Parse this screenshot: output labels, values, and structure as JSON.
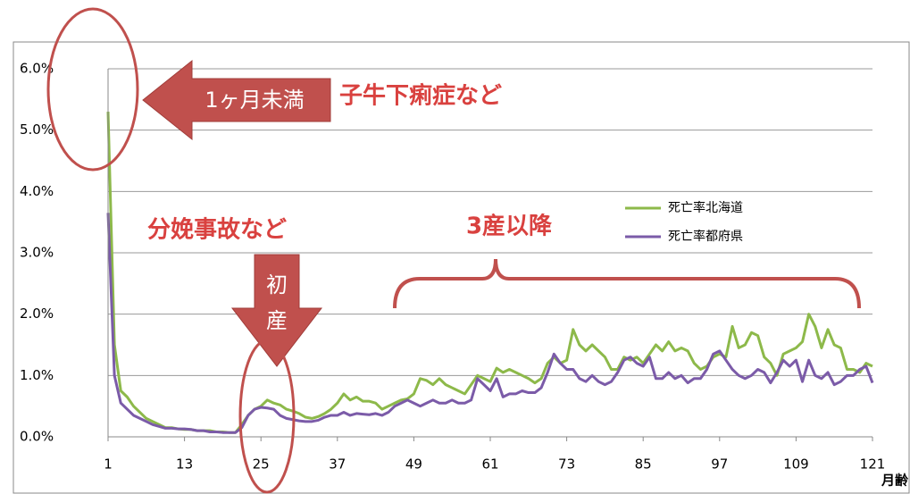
{
  "chart_data": {
    "type": "line",
    "xlabel": "月齢",
    "xlim": [
      1,
      121
    ],
    "xticks": [
      1,
      13,
      25,
      37,
      49,
      61,
      73,
      85,
      97,
      109,
      121
    ],
    "ylim": [
      0,
      6
    ],
    "yticks": [
      {
        "value": 0,
        "label": "0.0%"
      },
      {
        "value": 1,
        "label": "1.0%"
      },
      {
        "value": 2,
        "label": "2.0%"
      },
      {
        "value": 3,
        "label": "3.0%"
      },
      {
        "value": 4,
        "label": "4.0%"
      },
      {
        "value": 5,
        "label": "5.0%"
      },
      {
        "value": 6,
        "label": "6.0%"
      }
    ],
    "grid": true,
    "x": [
      1,
      2,
      3,
      4,
      5,
      6,
      7,
      8,
      9,
      10,
      11,
      12,
      13,
      14,
      15,
      16,
      17,
      18,
      19,
      20,
      21,
      22,
      23,
      24,
      25,
      26,
      27,
      28,
      29,
      30,
      31,
      32,
      33,
      34,
      35,
      36,
      37,
      38,
      39,
      40,
      41,
      42,
      43,
      44,
      45,
      46,
      47,
      48,
      49,
      50,
      51,
      52,
      53,
      54,
      55,
      56,
      57,
      58,
      59,
      60,
      61,
      62,
      63,
      64,
      65,
      66,
      67,
      68,
      69,
      70,
      71,
      72,
      73,
      74,
      75,
      76,
      77,
      78,
      79,
      80,
      81,
      82,
      83,
      84,
      85,
      86,
      87,
      88,
      89,
      90,
      91,
      92,
      93,
      94,
      95,
      96,
      97,
      98,
      99,
      100,
      101,
      102,
      103,
      104,
      105,
      106,
      107,
      108,
      109,
      110,
      111,
      112,
      113,
      114,
      115,
      116,
      117,
      118,
      119,
      120,
      121
    ],
    "series": [
      {
        "name": "死亡率北海道",
        "color": "#8db94a",
        "values": [
          5.3,
          1.5,
          0.75,
          0.65,
          0.5,
          0.4,
          0.3,
          0.25,
          0.2,
          0.15,
          0.15,
          0.13,
          0.12,
          0.12,
          0.1,
          0.1,
          0.1,
          0.08,
          0.08,
          0.07,
          0.07,
          0.2,
          0.35,
          0.45,
          0.5,
          0.6,
          0.55,
          0.52,
          0.45,
          0.42,
          0.38,
          0.32,
          0.3,
          0.33,
          0.38,
          0.45,
          0.55,
          0.7,
          0.6,
          0.65,
          0.58,
          0.58,
          0.55,
          0.45,
          0.5,
          0.55,
          0.6,
          0.62,
          0.7,
          0.95,
          0.92,
          0.85,
          0.95,
          0.85,
          0.8,
          0.75,
          0.7,
          0.85,
          1.0,
          0.95,
          0.9,
          1.12,
          1.05,
          1.1,
          1.05,
          1.0,
          0.95,
          0.88,
          0.95,
          1.2,
          1.3,
          1.2,
          1.25,
          1.75,
          1.5,
          1.4,
          1.5,
          1.4,
          1.3,
          1.1,
          1.1,
          1.3,
          1.25,
          1.3,
          1.2,
          1.35,
          1.5,
          1.4,
          1.55,
          1.4,
          1.45,
          1.4,
          1.2,
          1.1,
          1.15,
          1.3,
          1.35,
          1.3,
          1.8,
          1.45,
          1.5,
          1.7,
          1.65,
          1.3,
          1.2,
          1.0,
          1.35,
          1.4,
          1.45,
          1.55,
          2.0,
          1.8,
          1.45,
          1.75,
          1.5,
          1.45,
          1.1,
          1.1,
          1.05,
          1.2,
          1.15
        ]
      },
      {
        "name": "死亡率都府県",
        "color": "#7b5ba8",
        "values": [
          3.65,
          1.0,
          0.55,
          0.45,
          0.35,
          0.3,
          0.25,
          0.2,
          0.17,
          0.14,
          0.14,
          0.13,
          0.13,
          0.12,
          0.1,
          0.1,
          0.08,
          0.08,
          0.07,
          0.07,
          0.07,
          0.15,
          0.35,
          0.45,
          0.48,
          0.47,
          0.45,
          0.35,
          0.3,
          0.28,
          0.26,
          0.25,
          0.25,
          0.27,
          0.32,
          0.35,
          0.35,
          0.4,
          0.35,
          0.38,
          0.37,
          0.36,
          0.38,
          0.35,
          0.4,
          0.5,
          0.55,
          0.6,
          0.55,
          0.5,
          0.55,
          0.6,
          0.55,
          0.55,
          0.6,
          0.55,
          0.55,
          0.6,
          0.95,
          0.85,
          0.75,
          0.95,
          0.65,
          0.7,
          0.7,
          0.75,
          0.72,
          0.72,
          0.8,
          1.05,
          1.35,
          1.2,
          1.1,
          1.1,
          0.95,
          0.9,
          1.0,
          0.9,
          0.85,
          0.9,
          1.05,
          1.25,
          1.3,
          1.2,
          1.15,
          1.3,
          0.95,
          0.95,
          1.05,
          0.95,
          1.0,
          0.88,
          0.95,
          0.95,
          1.1,
          1.35,
          1.4,
          1.25,
          1.1,
          1.0,
          0.95,
          1.0,
          1.1,
          1.05,
          0.88,
          1.05,
          1.25,
          1.15,
          1.25,
          0.9,
          1.25,
          1.0,
          0.95,
          1.05,
          0.85,
          0.9,
          1.0,
          1.0,
          1.1,
          1.15,
          0.88
        ]
      }
    ],
    "annotations": {
      "under_one_month": "1ヶ月未満",
      "calf_diarrhea": "子牛下痢症など",
      "calving_accident": "分娩事故など",
      "first_calving": [
        "初",
        "産"
      ],
      "third_calving_and_later": "3産以降"
    }
  }
}
